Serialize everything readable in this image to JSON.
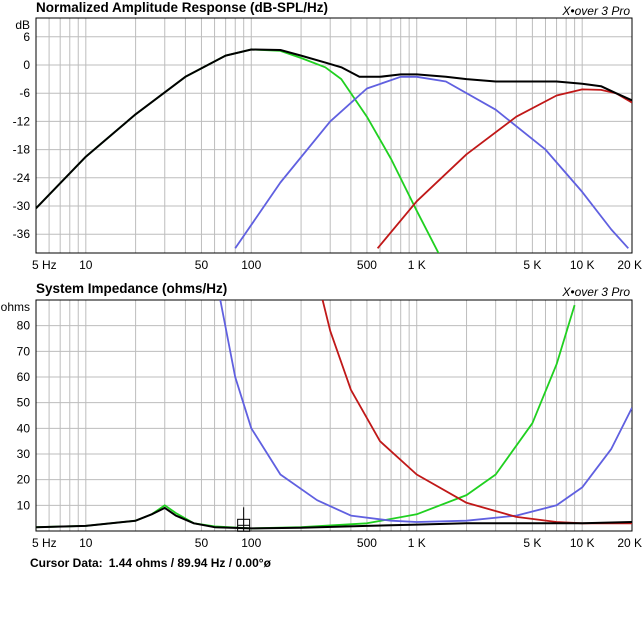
{
  "chart_data": [
    {
      "type": "line",
      "title": "Normalized Amplitude Response (dB-SPL/Hz)",
      "brand": "X•over 3 Pro",
      "x_scale": "log",
      "xlim": [
        5,
        20000
      ],
      "ylim": [
        -40,
        10
      ],
      "yunit": "dB",
      "x_tick_labels": [
        {
          "v": 5,
          "label": "5 Hz"
        },
        {
          "v": 10,
          "label": "10"
        },
        {
          "v": 50,
          "label": "50"
        },
        {
          "v": 100,
          "label": "100"
        },
        {
          "v": 500,
          "label": "500"
        },
        {
          "v": 1000,
          "label": "1 K"
        },
        {
          "v": 5000,
          "label": "5 K"
        },
        {
          "v": 10000,
          "label": "10 K"
        },
        {
          "v": 20000,
          "label": "20 K"
        }
      ],
      "y_ticks": [
        6,
        0,
        -6,
        -12,
        -18,
        -24,
        -30,
        -36
      ],
      "grid": true,
      "series": [
        {
          "color": "#20d020",
          "x": [
            5,
            10,
            20,
            40,
            70,
            100,
            150,
            200,
            280,
            350,
            500,
            700,
            1000,
            1400
          ],
          "y": [
            -30.5,
            -19.5,
            -10.5,
            -2.5,
            2,
            3.3,
            3,
            1.5,
            -0.5,
            -3,
            -11,
            -20,
            -31,
            -41
          ]
        },
        {
          "color": "#6060e0",
          "x": [
            80,
            150,
            300,
            500,
            800,
            1000,
            1500,
            3000,
            6000,
            10000,
            15000,
            19000
          ],
          "y": [
            -39,
            -25,
            -12,
            -5,
            -2.5,
            -2.5,
            -3.5,
            -9.5,
            -18,
            -27,
            -35,
            -39
          ]
        },
        {
          "color": "#c01818",
          "x": [
            580,
            1000,
            2000,
            4000,
            7000,
            10000,
            13000,
            16000,
            20000
          ],
          "y": [
            -39,
            -29,
            -19,
            -11,
            -6.5,
            -5.2,
            -5.3,
            -6,
            -8
          ]
        },
        {
          "color": "#000000",
          "x": [
            5,
            10,
            20,
            40,
            70,
            100,
            150,
            200,
            280,
            350,
            450,
            600,
            800,
            1000,
            1500,
            2000,
            3000,
            5000,
            7000,
            10000,
            13000,
            16000,
            20000
          ],
          "y": [
            -30.5,
            -19.5,
            -10.5,
            -2.5,
            2,
            3.3,
            3.2,
            2,
            0.5,
            -0.5,
            -2.5,
            -2.5,
            -2,
            -2,
            -2.5,
            -3,
            -3.5,
            -3.5,
            -3.5,
            -4,
            -4.5,
            -6,
            -7.5
          ]
        }
      ]
    },
    {
      "type": "line",
      "title": "System Impedance (ohms/Hz)",
      "brand": "X•over 3 Pro",
      "x_scale": "log",
      "xlim": [
        5,
        20000
      ],
      "ylim": [
        0,
        90
      ],
      "yunit": "ohms",
      "x_tick_labels": [
        {
          "v": 5,
          "label": "5 Hz"
        },
        {
          "v": 10,
          "label": "10"
        },
        {
          "v": 50,
          "label": "50"
        },
        {
          "v": 100,
          "label": "100"
        },
        {
          "v": 500,
          "label": "500"
        },
        {
          "v": 1000,
          "label": "1 K"
        },
        {
          "v": 5000,
          "label": "5 K"
        },
        {
          "v": 10000,
          "label": "10 K"
        },
        {
          "v": 20000,
          "label": "20 K"
        }
      ],
      "y_ticks": [
        80,
        70,
        60,
        50,
        40,
        30,
        20,
        10
      ],
      "grid": true,
      "series": [
        {
          "color": "#20d020",
          "x": [
            5,
            10,
            20,
            25,
            30,
            35,
            45,
            60,
            100,
            200,
            500,
            1000,
            2000,
            3000,
            5000,
            7000,
            9000
          ],
          "y": [
            1.5,
            2,
            4,
            6.5,
            10,
            7,
            3,
            1.8,
            1,
            1.5,
            3,
            6.5,
            14,
            22,
            42,
            65,
            88
          ]
        },
        {
          "color": "#6060e0",
          "x": [
            65,
            80,
            100,
            150,
            250,
            400,
            700,
            1000,
            2000,
            4000,
            7000,
            10000,
            15000,
            20000
          ],
          "y": [
            90,
            60,
            40,
            22,
            12,
            6,
            4,
            3.5,
            4,
            6,
            10,
            17,
            32,
            48
          ]
        },
        {
          "color": "#c01818",
          "x": [
            270,
            300,
            400,
            600,
            1000,
            2000,
            4000,
            7000,
            10000,
            20000
          ],
          "y": [
            90,
            78,
            55,
            35,
            22,
            11,
            5.5,
            3.5,
            3,
            3
          ]
        },
        {
          "color": "#000000",
          "x": [
            5,
            10,
            20,
            25,
            30,
            35,
            45,
            60,
            100,
            200,
            500,
            1000,
            2000,
            5000,
            10000,
            20000
          ],
          "y": [
            1.5,
            2,
            4,
            6.5,
            9,
            6,
            3,
            1.5,
            1,
            1.3,
            2,
            2.5,
            3,
            3,
            3,
            3.5
          ]
        }
      ],
      "cursor": {
        "x": 89.94,
        "y": 1.44
      }
    }
  ],
  "cursor_data": {
    "label": "Cursor Data:",
    "value": "1.44 ohms / 89.94 Hz / 0.00°ø"
  }
}
